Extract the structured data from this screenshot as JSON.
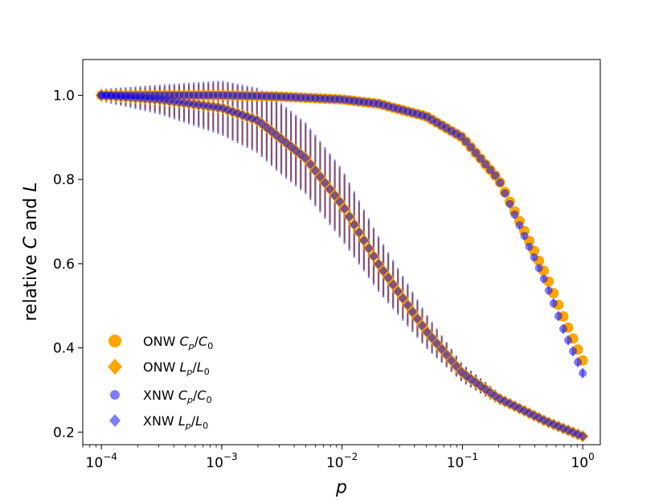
{
  "chart_data": {
    "type": "scatter",
    "title": "",
    "xlabel": "p",
    "ylabel_parts": {
      "prefix": "relative ",
      "c": "C",
      "middle": " and ",
      "l": "L"
    },
    "xscale": "log",
    "xlim": [
      7e-05,
      1.4
    ],
    "ylim": [
      0.17,
      1.085
    ],
    "x_ticks": [
      {
        "value": 0.0001,
        "base": "10",
        "exp": "−4"
      },
      {
        "value": 0.001,
        "base": "10",
        "exp": "−3"
      },
      {
        "value": 0.01,
        "base": "10",
        "exp": "−2"
      },
      {
        "value": 0.1,
        "base": "10",
        "exp": "−1"
      },
      {
        "value": 1,
        "base": "10",
        "exp": "0"
      }
    ],
    "y_ticks": [
      {
        "value": 0.2,
        "label": "0.2"
      },
      {
        "value": 0.4,
        "label": "0.4"
      },
      {
        "value": 0.6,
        "label": "0.6"
      },
      {
        "value": 0.8,
        "label": "0.8"
      },
      {
        "value": 1.0,
        "label": "1.0"
      }
    ],
    "grid": false,
    "legend_position": "lower-left",
    "n_points": 100,
    "x_range": [
      0.0001,
      1
    ],
    "series": [
      {
        "name": "ONW Cp/C0",
        "label_main": "ONW ",
        "sym": "C",
        "sub": "p",
        "sym2": "C",
        "sub2": "0",
        "marker": "circle",
        "color": "#FFA500",
        "opacity": 1.0,
        "anchors": {
          "x": [
            0.0001,
            0.001,
            0.003,
            0.01,
            0.02,
            0.05,
            0.1,
            0.2,
            0.3,
            0.5,
            0.7,
            1.0
          ],
          "y": [
            1.0,
            1.0,
            0.997,
            0.99,
            0.98,
            0.95,
            0.9,
            0.8,
            0.7,
            0.57,
            0.47,
            0.37
          ]
        },
        "err_anchors": {
          "x": [
            0.0001,
            0.001,
            0.01,
            0.1,
            1.0
          ],
          "e": [
            0.004,
            0.005,
            0.006,
            0.01,
            0.012
          ]
        }
      },
      {
        "name": "ONW Lp/L0",
        "label_main": "ONW ",
        "sym": "L",
        "sub": "p",
        "sym2": "L",
        "sub2": "0",
        "marker": "diamond",
        "color": "#FFA500",
        "opacity": 1.0,
        "anchors": {
          "x": [
            0.0001,
            0.0003,
            0.001,
            0.002,
            0.005,
            0.01,
            0.02,
            0.05,
            0.1,
            0.2,
            0.5,
            1.0
          ],
          "y": [
            1.0,
            0.99,
            0.97,
            0.94,
            0.85,
            0.74,
            0.6,
            0.44,
            0.34,
            0.28,
            0.225,
            0.19
          ]
        },
        "err_anchors": {
          "x": [
            0.0001,
            0.0003,
            0.001,
            0.003,
            0.01,
            0.03,
            0.1,
            0.3,
            1.0
          ],
          "e": [
            0.012,
            0.03,
            0.06,
            0.08,
            0.08,
            0.05,
            0.02,
            0.01,
            0.005
          ]
        }
      },
      {
        "name": "XNW Cp/C0",
        "label_main": "XNW ",
        "sym": "C",
        "sub": "p",
        "sym2": "C",
        "sub2": "0",
        "marker": "circle",
        "color": "#0000FF",
        "opacity": 0.5,
        "anchors": {
          "x": [
            0.0001,
            0.001,
            0.003,
            0.01,
            0.02,
            0.05,
            0.1,
            0.2,
            0.3,
            0.5,
            0.7,
            1.0
          ],
          "y": [
            1.0,
            1.0,
            0.997,
            0.99,
            0.98,
            0.95,
            0.9,
            0.8,
            0.69,
            0.55,
            0.44,
            0.34
          ]
        },
        "err_anchors": {
          "x": [
            0.0001,
            0.001,
            0.01,
            0.1,
            1.0
          ],
          "e": [
            0.004,
            0.005,
            0.006,
            0.01,
            0.012
          ]
        }
      },
      {
        "name": "XNW Lp/L0",
        "label_main": "XNW ",
        "sym": "L",
        "sub": "p",
        "sym2": "L",
        "sub2": "0",
        "marker": "diamond",
        "color": "#0000FF",
        "opacity": 0.5,
        "anchors": {
          "x": [
            0.0001,
            0.0003,
            0.001,
            0.002,
            0.005,
            0.01,
            0.02,
            0.05,
            0.1,
            0.2,
            0.5,
            1.0
          ],
          "y": [
            1.0,
            0.99,
            0.97,
            0.94,
            0.85,
            0.74,
            0.6,
            0.44,
            0.34,
            0.28,
            0.225,
            0.19
          ]
        },
        "err_anchors": {
          "x": [
            0.0001,
            0.0003,
            0.001,
            0.003,
            0.01,
            0.03,
            0.1,
            0.3,
            1.0
          ],
          "e": [
            0.015,
            0.035,
            0.065,
            0.085,
            0.085,
            0.055,
            0.022,
            0.01,
            0.005
          ]
        }
      }
    ]
  }
}
